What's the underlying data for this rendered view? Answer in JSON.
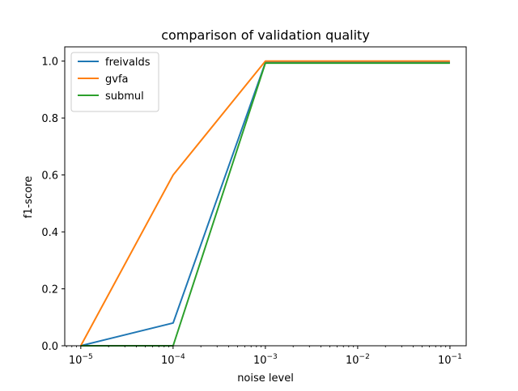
{
  "chart_data": {
    "type": "line",
    "title": "comparison of validation quality",
    "xlabel": "noise level",
    "ylabel": "f1-score",
    "xscale": "log",
    "x": [
      1e-05,
      0.0001,
      0.001,
      0.01,
      0.1
    ],
    "xlim": [
      6.7e-06,
      0.15
    ],
    "ylim": [
      0,
      1.05
    ],
    "xticks": [
      {
        "value": 1e-05,
        "base": "10",
        "exp": "−5"
      },
      {
        "value": 0.0001,
        "base": "10",
        "exp": "−4"
      },
      {
        "value": 0.001,
        "base": "10",
        "exp": "−3"
      },
      {
        "value": 0.01,
        "base": "10",
        "exp": "−2"
      },
      {
        "value": 0.1,
        "base": "10",
        "exp": "−1"
      }
    ],
    "yticks": [
      {
        "value": 0.0,
        "label": "0.0"
      },
      {
        "value": 0.2,
        "label": "0.2"
      },
      {
        "value": 0.4,
        "label": "0.4"
      },
      {
        "value": 0.6,
        "label": "0.6"
      },
      {
        "value": 0.8,
        "label": "0.8"
      },
      {
        "value": 1.0,
        "label": "1.0"
      }
    ],
    "series": [
      {
        "name": "freivalds",
        "color": "#1f77b4",
        "values": [
          0.0,
          0.08,
          0.995,
          0.995,
          0.995
        ]
      },
      {
        "name": "gvfa",
        "color": "#ff7f0e",
        "values": [
          0.0,
          0.6,
          1.0,
          1.0,
          1.0
        ]
      },
      {
        "name": "submul",
        "color": "#2ca02c",
        "values": [
          0.0,
          0.0,
          0.993,
          0.993,
          0.993
        ]
      }
    ],
    "legend": "top-left",
    "grid": false
  }
}
